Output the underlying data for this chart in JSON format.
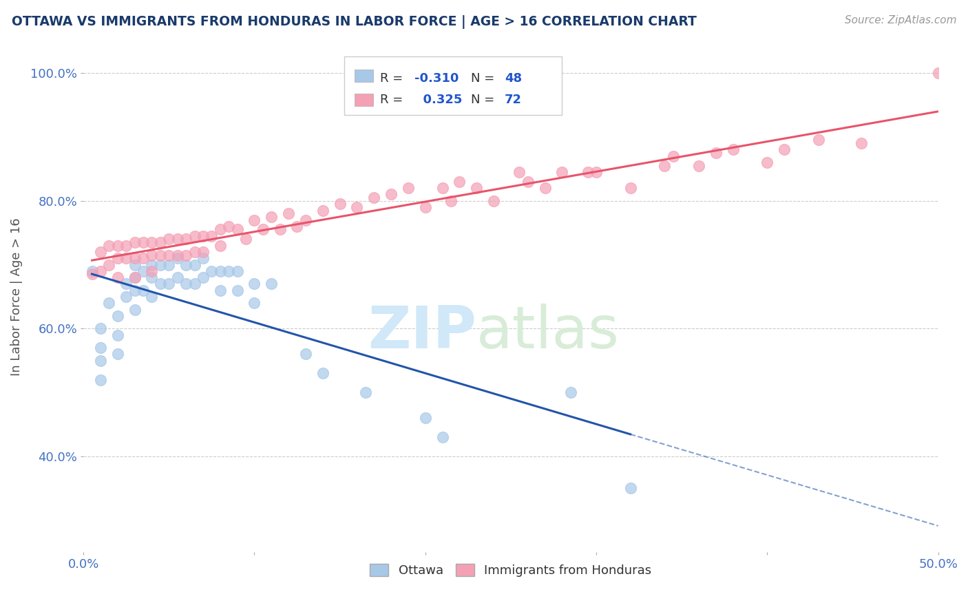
{
  "title": "OTTAWA VS IMMIGRANTS FROM HONDURAS IN LABOR FORCE | AGE > 16 CORRELATION CHART",
  "source": "Source: ZipAtlas.com",
  "ylabel": "In Labor Force | Age > 16",
  "xlim": [
    0.0,
    0.5
  ],
  "ylim": [
    0.25,
    1.05
  ],
  "x_ticks": [
    0.0,
    0.1,
    0.2,
    0.3,
    0.4,
    0.5
  ],
  "x_tick_labels": [
    "0.0%",
    "",
    "",
    "",
    "",
    "50.0%"
  ],
  "y_ticks": [
    0.4,
    0.6,
    0.8,
    1.0
  ],
  "y_tick_labels": [
    "40.0%",
    "60.0%",
    "80.0%",
    "100.0%"
  ],
  "ottawa_color": "#A8C8E8",
  "honduras_color": "#F4A0B5",
  "ottawa_line_color": "#2255AA",
  "honduras_line_color": "#E8546A",
  "R_ottawa": -0.31,
  "N_ottawa": 48,
  "R_honduras": 0.325,
  "N_honduras": 72,
  "ottawa_x": [
    0.005,
    0.01,
    0.01,
    0.01,
    0.01,
    0.015,
    0.02,
    0.02,
    0.02,
    0.025,
    0.025,
    0.03,
    0.03,
    0.03,
    0.03,
    0.035,
    0.035,
    0.04,
    0.04,
    0.04,
    0.045,
    0.045,
    0.05,
    0.05,
    0.055,
    0.055,
    0.06,
    0.06,
    0.065,
    0.065,
    0.07,
    0.07,
    0.075,
    0.08,
    0.08,
    0.085,
    0.09,
    0.09,
    0.1,
    0.1,
    0.11,
    0.13,
    0.14,
    0.165,
    0.2,
    0.21,
    0.285,
    0.32
  ],
  "ottawa_y": [
    0.69,
    0.6,
    0.57,
    0.55,
    0.52,
    0.64,
    0.62,
    0.59,
    0.56,
    0.67,
    0.65,
    0.7,
    0.68,
    0.66,
    0.63,
    0.69,
    0.66,
    0.7,
    0.68,
    0.65,
    0.7,
    0.67,
    0.7,
    0.67,
    0.71,
    0.68,
    0.7,
    0.67,
    0.7,
    0.67,
    0.71,
    0.68,
    0.69,
    0.69,
    0.66,
    0.69,
    0.69,
    0.66,
    0.67,
    0.64,
    0.67,
    0.56,
    0.53,
    0.5,
    0.46,
    0.43,
    0.5,
    0.35
  ],
  "honduras_x": [
    0.005,
    0.01,
    0.01,
    0.015,
    0.015,
    0.02,
    0.02,
    0.02,
    0.025,
    0.025,
    0.03,
    0.03,
    0.03,
    0.035,
    0.035,
    0.04,
    0.04,
    0.04,
    0.045,
    0.045,
    0.05,
    0.05,
    0.055,
    0.055,
    0.06,
    0.06,
    0.065,
    0.065,
    0.07,
    0.07,
    0.075,
    0.08,
    0.08,
    0.085,
    0.09,
    0.095,
    0.1,
    0.105,
    0.11,
    0.115,
    0.12,
    0.125,
    0.13,
    0.14,
    0.15,
    0.16,
    0.17,
    0.18,
    0.19,
    0.2,
    0.21,
    0.215,
    0.22,
    0.23,
    0.24,
    0.255,
    0.26,
    0.27,
    0.28,
    0.295,
    0.3,
    0.32,
    0.34,
    0.345,
    0.36,
    0.37,
    0.38,
    0.4,
    0.41,
    0.43,
    0.455,
    0.5
  ],
  "honduras_y": [
    0.685,
    0.72,
    0.69,
    0.73,
    0.7,
    0.73,
    0.71,
    0.68,
    0.73,
    0.71,
    0.735,
    0.71,
    0.68,
    0.735,
    0.71,
    0.735,
    0.715,
    0.69,
    0.735,
    0.715,
    0.74,
    0.715,
    0.74,
    0.715,
    0.74,
    0.715,
    0.745,
    0.72,
    0.745,
    0.72,
    0.745,
    0.755,
    0.73,
    0.76,
    0.755,
    0.74,
    0.77,
    0.755,
    0.775,
    0.755,
    0.78,
    0.76,
    0.77,
    0.785,
    0.795,
    0.79,
    0.805,
    0.81,
    0.82,
    0.79,
    0.82,
    0.8,
    0.83,
    0.82,
    0.8,
    0.845,
    0.83,
    0.82,
    0.845,
    0.845,
    0.845,
    0.82,
    0.855,
    0.87,
    0.855,
    0.875,
    0.88,
    0.86,
    0.88,
    0.895,
    0.89,
    1.0
  ]
}
